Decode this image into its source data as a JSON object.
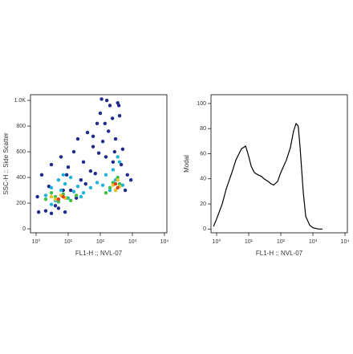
{
  "chart_data": [
    {
      "type": "scatter",
      "xlabel": "FL1-H :: NVL-07",
      "ylabel": "SSC-H :: Side Scatter",
      "xscale": "log",
      "xlim": [
        0.67,
        11900
      ],
      "ylim": [
        -31,
        1044
      ],
      "xticks": [
        {
          "value": 1,
          "label": "10⁰"
        },
        {
          "value": 10,
          "label": "10¹"
        },
        {
          "value": 100,
          "label": "10²"
        },
        {
          "value": 1000,
          "label": "10³"
        },
        {
          "value": 10000,
          "label": "10⁴"
        }
      ],
      "yticks": [
        0,
        200,
        400,
        600,
        800,
        {
          "value": 1000,
          "label": "1.0K"
        }
      ],
      "series": [
        {
          "color": "#1f2a8c",
          "x": [
            1.2,
            1.5,
            2,
            3,
            4,
            6,
            8,
            10,
            15,
            20,
            30,
            40,
            60,
            80,
            100,
            150,
            200,
            300,
            400,
            500,
            700,
            1.1,
            2.5,
            5,
            9,
            12,
            25,
            50,
            90,
            120,
            180,
            250,
            350,
            600,
            3,
            7,
            18,
            35,
            70,
            140,
            280,
            450,
            160,
            240,
            380,
            60,
            110,
            900
          ],
          "values": [
            130,
            420,
            140,
            500,
            180,
            560,
            130,
            480,
            600,
            700,
            520,
            750,
            640,
            820,
            900,
            560,
            960,
            700,
            880,
            620,
            420,
            250,
            330,
            160,
            420,
            300,
            380,
            450,
            590,
            680,
            760,
            520,
            980,
            300,
            120,
            300,
            240,
            350,
            430,
            820,
            600,
            500,
            1000,
            860,
            960,
            720,
            1010,
            380
          ]
        },
        {
          "color": "#1fb3d9",
          "x": [
            2,
            3,
            4,
            5,
            6,
            8,
            10,
            12,
            15,
            20,
            30,
            50,
            80,
            120,
            150,
            200,
            250,
            300,
            400,
            500,
            3,
            7,
            25,
            350
          ],
          "values": [
            260,
            320,
            220,
            380,
            300,
            350,
            240,
            400,
            290,
            330,
            280,
            320,
            360,
            340,
            420,
            300,
            460,
            380,
            520,
            340,
            190,
            420,
            250,
            560
          ]
        },
        {
          "color": "#3fbf4a",
          "x": [
            2,
            3,
            4,
            5,
            7,
            9,
            12,
            18,
            200,
            250,
            300,
            350,
            400,
            150
          ],
          "values": [
            230,
            280,
            250,
            210,
            270,
            240,
            220,
            260,
            320,
            360,
            300,
            400,
            350,
            280
          ]
        },
        {
          "color": "#f0c020",
          "x": [
            3,
            4,
            6,
            8,
            250,
            300,
            350,
            400
          ],
          "values": [
            250,
            230,
            260,
            240,
            340,
            300,
            380,
            330
          ]
        },
        {
          "color": "#e0401c",
          "x": [
            5,
            7,
            300,
            350
          ],
          "values": [
            230,
            250,
            350,
            320
          ]
        }
      ]
    },
    {
      "type": "line",
      "xlabel": "FL1-H :: NVL-07",
      "ylabel": "Modal",
      "xscale": "log",
      "color": "#000000",
      "xlim": [
        0.67,
        11900
      ],
      "ylim": [
        -3,
        107
      ],
      "xticks": [
        {
          "value": 1,
          "label": "10⁰"
        },
        {
          "value": 10,
          "label": "10¹"
        },
        {
          "value": 100,
          "label": "10²"
        },
        {
          "value": 1000,
          "label": "10³"
        },
        {
          "value": 10000,
          "label": "10⁴"
        }
      ],
      "yticks": [
        0,
        20,
        40,
        60,
        80,
        100
      ],
      "x": [
        0.8,
        1,
        1.5,
        2,
        3,
        4,
        5,
        6,
        7,
        8,
        9,
        10,
        12,
        15,
        20,
        25,
        30,
        40,
        50,
        60,
        80,
        100,
        150,
        200,
        250,
        300,
        350,
        400,
        500,
        600,
        800,
        1000,
        1500,
        2000
      ],
      "values": [
        2,
        8,
        20,
        32,
        45,
        55,
        60,
        64,
        65,
        66,
        62,
        58,
        50,
        45,
        43,
        42,
        40,
        38,
        36,
        35,
        38,
        45,
        55,
        65,
        78,
        84,
        82,
        65,
        30,
        10,
        3,
        1,
        0,
        0
      ]
    }
  ]
}
